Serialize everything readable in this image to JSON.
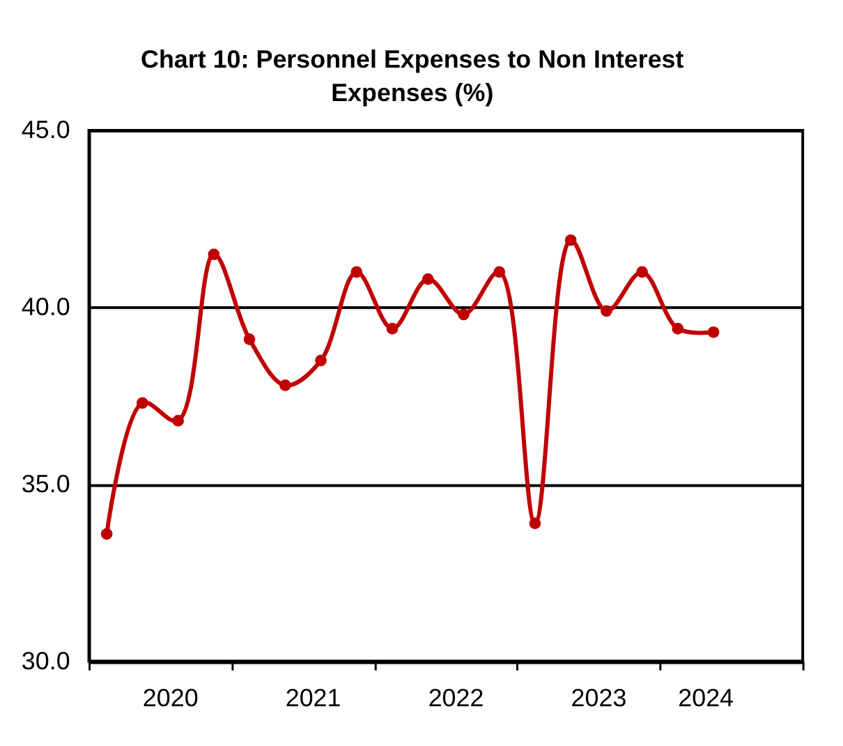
{
  "chart_data": {
    "type": "line",
    "title": "Chart 10: Personnel Expenses to Non Interest Expenses (%)",
    "categories": [
      null,
      null,
      "2020",
      null,
      null,
      null,
      "2021",
      null,
      null,
      null,
      "2022",
      null,
      null,
      null,
      "2023",
      null,
      null,
      "2024",
      null,
      null
    ],
    "series": [
      {
        "color": "#c00000",
        "values": [
          33.6,
          37.3,
          36.8,
          41.5,
          39.1,
          37.8,
          38.5,
          41.0,
          39.4,
          40.8,
          39.8,
          41.0,
          33.9,
          41.9,
          39.9,
          41.0,
          39.4,
          39.3,
          null,
          null
        ]
      }
    ],
    "ylim": [
      30,
      45
    ],
    "yticks": [
      {
        "value": 30,
        "label": "30.0"
      },
      {
        "value": 35,
        "label": "35.0"
      },
      {
        "value": 40,
        "label": "40.0"
      },
      {
        "value": 45,
        "label": "45.0"
      }
    ],
    "grid": "y",
    "marker": "circle",
    "line_style": "solid"
  }
}
